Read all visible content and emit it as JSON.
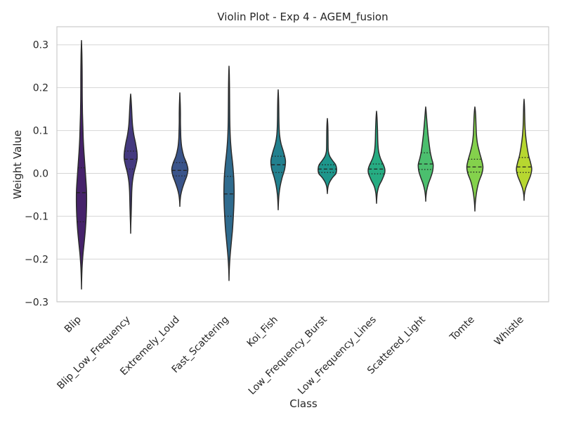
{
  "chart_data": {
    "type": "violin",
    "title": "Violin Plot - Exp 4 - AGEM_fusion",
    "xlabel": "Class",
    "ylabel": "Weight Value",
    "ylim": [
      -0.3,
      0.3
    ],
    "yticks": [
      0.3,
      0.2,
      0.1,
      0.0,
      -0.1,
      -0.2,
      -0.3
    ],
    "ytick_labels": [
      "0.3",
      "0.2",
      "0.1",
      "0.0",
      "−0.1",
      "−0.2",
      "−0.3"
    ],
    "grid": true,
    "inner": "quartile",
    "categories": [
      "Blip",
      "Blip_Low_Frequency",
      "Extremely_Loud",
      "Fast_Scattering",
      "Koi_Fish",
      "Low_Frequency_Burst",
      "Low_Frequency_Lines",
      "Scattered_Light",
      "Tomte",
      "Whistle"
    ],
    "colors": [
      "#46226b",
      "#44397f",
      "#3a548a",
      "#2f6b8e",
      "#22808e",
      "#1d968b",
      "#26ac82",
      "#4bbf6e",
      "#84d14c",
      "#b7d730"
    ],
    "violins": [
      {
        "min": -0.27,
        "max": 0.31,
        "q1": -0.113,
        "median": -0.045,
        "q3": 0.013,
        "profile": [
          [
            -0.27,
            0.002
          ],
          [
            -0.25,
            0.008
          ],
          [
            -0.22,
            0.03
          ],
          [
            -0.19,
            0.075
          ],
          [
            -0.16,
            0.14
          ],
          [
            -0.13,
            0.2
          ],
          [
            -0.1,
            0.24
          ],
          [
            -0.07,
            0.26
          ],
          [
            -0.04,
            0.255
          ],
          [
            -0.01,
            0.215
          ],
          [
            0.02,
            0.17
          ],
          [
            0.05,
            0.125
          ],
          [
            0.08,
            0.09
          ],
          [
            0.11,
            0.07
          ],
          [
            0.14,
            0.05
          ],
          [
            0.17,
            0.04
          ],
          [
            0.2,
            0.035
          ],
          [
            0.22,
            0.035
          ],
          [
            0.25,
            0.03
          ],
          [
            0.28,
            0.02
          ],
          [
            0.31,
            0.002
          ]
        ]
      },
      {
        "min": -0.14,
        "max": 0.185,
        "q1": 0.01,
        "median": 0.033,
        "q3": 0.052,
        "profile": [
          [
            -0.14,
            0.002
          ],
          [
            -0.12,
            0.008
          ],
          [
            -0.1,
            0.022
          ],
          [
            -0.08,
            0.035
          ],
          [
            -0.06,
            0.045
          ],
          [
            -0.04,
            0.058
          ],
          [
            -0.02,
            0.09
          ],
          [
            0.0,
            0.16
          ],
          [
            0.02,
            0.27
          ],
          [
            0.035,
            0.33
          ],
          [
            0.05,
            0.32
          ],
          [
            0.07,
            0.25
          ],
          [
            0.09,
            0.16
          ],
          [
            0.11,
            0.1
          ],
          [
            0.13,
            0.07
          ],
          [
            0.15,
            0.05
          ],
          [
            0.17,
            0.025
          ],
          [
            0.185,
            0.002
          ]
        ]
      },
      {
        "min": -0.077,
        "max": 0.188,
        "q1": -0.006,
        "median": 0.007,
        "q3": 0.025,
        "profile": [
          [
            -0.077,
            0.002
          ],
          [
            -0.065,
            0.012
          ],
          [
            -0.05,
            0.05
          ],
          [
            -0.035,
            0.13
          ],
          [
            -0.02,
            0.24
          ],
          [
            -0.005,
            0.36
          ],
          [
            0.01,
            0.41
          ],
          [
            0.025,
            0.33
          ],
          [
            0.04,
            0.2
          ],
          [
            0.06,
            0.1
          ],
          [
            0.08,
            0.055
          ],
          [
            0.1,
            0.04
          ],
          [
            0.12,
            0.03
          ],
          [
            0.14,
            0.03
          ],
          [
            0.16,
            0.022
          ],
          [
            0.175,
            0.01
          ],
          [
            0.188,
            0.002
          ]
        ]
      },
      {
        "min": -0.25,
        "max": 0.25,
        "q1": -0.1,
        "median": -0.048,
        "q3": -0.007,
        "profile": [
          [
            -0.25,
            0.002
          ],
          [
            -0.23,
            0.01
          ],
          [
            -0.21,
            0.03
          ],
          [
            -0.19,
            0.06
          ],
          [
            -0.17,
            0.1
          ],
          [
            -0.15,
            0.14
          ],
          [
            -0.13,
            0.18
          ],
          [
            -0.1,
            0.22
          ],
          [
            -0.07,
            0.25
          ],
          [
            -0.04,
            0.26
          ],
          [
            -0.01,
            0.24
          ],
          [
            0.02,
            0.19
          ],
          [
            0.05,
            0.12
          ],
          [
            0.08,
            0.07
          ],
          [
            0.11,
            0.045
          ],
          [
            0.14,
            0.035
          ],
          [
            0.17,
            0.03
          ],
          [
            0.2,
            0.025
          ],
          [
            0.23,
            0.015
          ],
          [
            0.25,
            0.002
          ]
        ]
      },
      {
        "min": -0.085,
        "max": 0.195,
        "q1": 0.002,
        "median": 0.02,
        "q3": 0.04,
        "profile": [
          [
            -0.085,
            0.002
          ],
          [
            -0.07,
            0.012
          ],
          [
            -0.05,
            0.04
          ],
          [
            -0.03,
            0.1
          ],
          [
            -0.01,
            0.2
          ],
          [
            0.01,
            0.33
          ],
          [
            0.03,
            0.37
          ],
          [
            0.05,
            0.27
          ],
          [
            0.07,
            0.14
          ],
          [
            0.09,
            0.07
          ],
          [
            0.11,
            0.045
          ],
          [
            0.13,
            0.035
          ],
          [
            0.15,
            0.03
          ],
          [
            0.17,
            0.022
          ],
          [
            0.185,
            0.01
          ],
          [
            0.195,
            0.002
          ]
        ]
      },
      {
        "min": -0.047,
        "max": 0.128,
        "q1": 0.002,
        "median": 0.01,
        "q3": 0.02,
        "profile": [
          [
            -0.047,
            0.002
          ],
          [
            -0.04,
            0.01
          ],
          [
            -0.03,
            0.04
          ],
          [
            -0.02,
            0.12
          ],
          [
            -0.01,
            0.26
          ],
          [
            0.0,
            0.44
          ],
          [
            0.01,
            0.47
          ],
          [
            0.02,
            0.42
          ],
          [
            0.03,
            0.26
          ],
          [
            0.04,
            0.12
          ],
          [
            0.05,
            0.055
          ],
          [
            0.06,
            0.04
          ],
          [
            0.08,
            0.035
          ],
          [
            0.1,
            0.03
          ],
          [
            0.115,
            0.02
          ],
          [
            0.128,
            0.002
          ]
        ]
      },
      {
        "min": -0.07,
        "max": 0.145,
        "q1": -0.001,
        "median": 0.01,
        "q3": 0.022,
        "profile": [
          [
            -0.07,
            0.002
          ],
          [
            -0.06,
            0.01
          ],
          [
            -0.045,
            0.04
          ],
          [
            -0.03,
            0.12
          ],
          [
            -0.015,
            0.28
          ],
          [
            0.0,
            0.41
          ],
          [
            0.01,
            0.42
          ],
          [
            0.02,
            0.35
          ],
          [
            0.035,
            0.2
          ],
          [
            0.05,
            0.11
          ],
          [
            0.065,
            0.075
          ],
          [
            0.08,
            0.06
          ],
          [
            0.1,
            0.05
          ],
          [
            0.12,
            0.035
          ],
          [
            0.135,
            0.018
          ],
          [
            0.145,
            0.002
          ]
        ]
      },
      {
        "min": -0.065,
        "max": 0.155,
        "q1": 0.009,
        "median": 0.022,
        "q3": 0.048,
        "profile": [
          [
            -0.065,
            0.002
          ],
          [
            -0.055,
            0.01
          ],
          [
            -0.04,
            0.05
          ],
          [
            -0.025,
            0.13
          ],
          [
            -0.01,
            0.25
          ],
          [
            0.005,
            0.35
          ],
          [
            0.02,
            0.38
          ],
          [
            0.035,
            0.3
          ],
          [
            0.05,
            0.23
          ],
          [
            0.07,
            0.17
          ],
          [
            0.09,
            0.12
          ],
          [
            0.11,
            0.08
          ],
          [
            0.13,
            0.045
          ],
          [
            0.145,
            0.02
          ],
          [
            0.155,
            0.002
          ]
        ]
      },
      {
        "min": -0.088,
        "max": 0.155,
        "q1": 0.003,
        "median": 0.015,
        "q3": 0.033,
        "profile": [
          [
            -0.088,
            0.002
          ],
          [
            -0.075,
            0.012
          ],
          [
            -0.06,
            0.04
          ],
          [
            -0.04,
            0.1
          ],
          [
            -0.02,
            0.2
          ],
          [
            0.0,
            0.36
          ],
          [
            0.015,
            0.41
          ],
          [
            0.03,
            0.35
          ],
          [
            0.05,
            0.23
          ],
          [
            0.07,
            0.13
          ],
          [
            0.09,
            0.08
          ],
          [
            0.11,
            0.06
          ],
          [
            0.13,
            0.045
          ],
          [
            0.145,
            0.025
          ],
          [
            0.155,
            0.002
          ]
        ]
      },
      {
        "min": -0.063,
        "max": 0.173,
        "q1": 0.002,
        "median": 0.015,
        "q3": 0.037,
        "profile": [
          [
            -0.063,
            0.002
          ],
          [
            -0.05,
            0.015
          ],
          [
            -0.035,
            0.08
          ],
          [
            -0.02,
            0.2
          ],
          [
            -0.005,
            0.33
          ],
          [
            0.01,
            0.39
          ],
          [
            0.025,
            0.33
          ],
          [
            0.04,
            0.24
          ],
          [
            0.06,
            0.16
          ],
          [
            0.08,
            0.1
          ],
          [
            0.1,
            0.06
          ],
          [
            0.12,
            0.04
          ],
          [
            0.14,
            0.03
          ],
          [
            0.16,
            0.018
          ],
          [
            0.173,
            0.002
          ]
        ]
      }
    ]
  }
}
